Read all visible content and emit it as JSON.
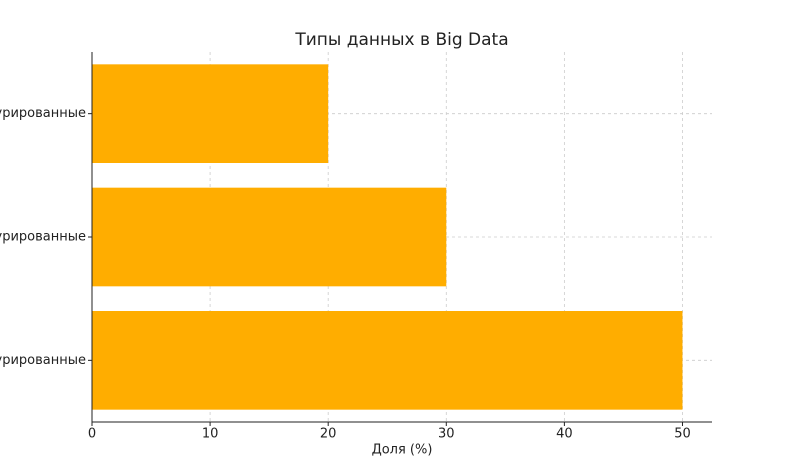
{
  "chart_data": {
    "type": "barh",
    "title": "Типы данных в Big Data",
    "categories": [
      "урированные",
      "урированные",
      "урированные"
    ],
    "values": [
      20,
      30,
      50
    ],
    "color": "#ffad00",
    "xlabel": "Доля (%)",
    "xlim": [
      0,
      52.5
    ],
    "xticks": [
      0,
      10,
      20,
      30,
      40,
      50
    ],
    "grid": true
  }
}
